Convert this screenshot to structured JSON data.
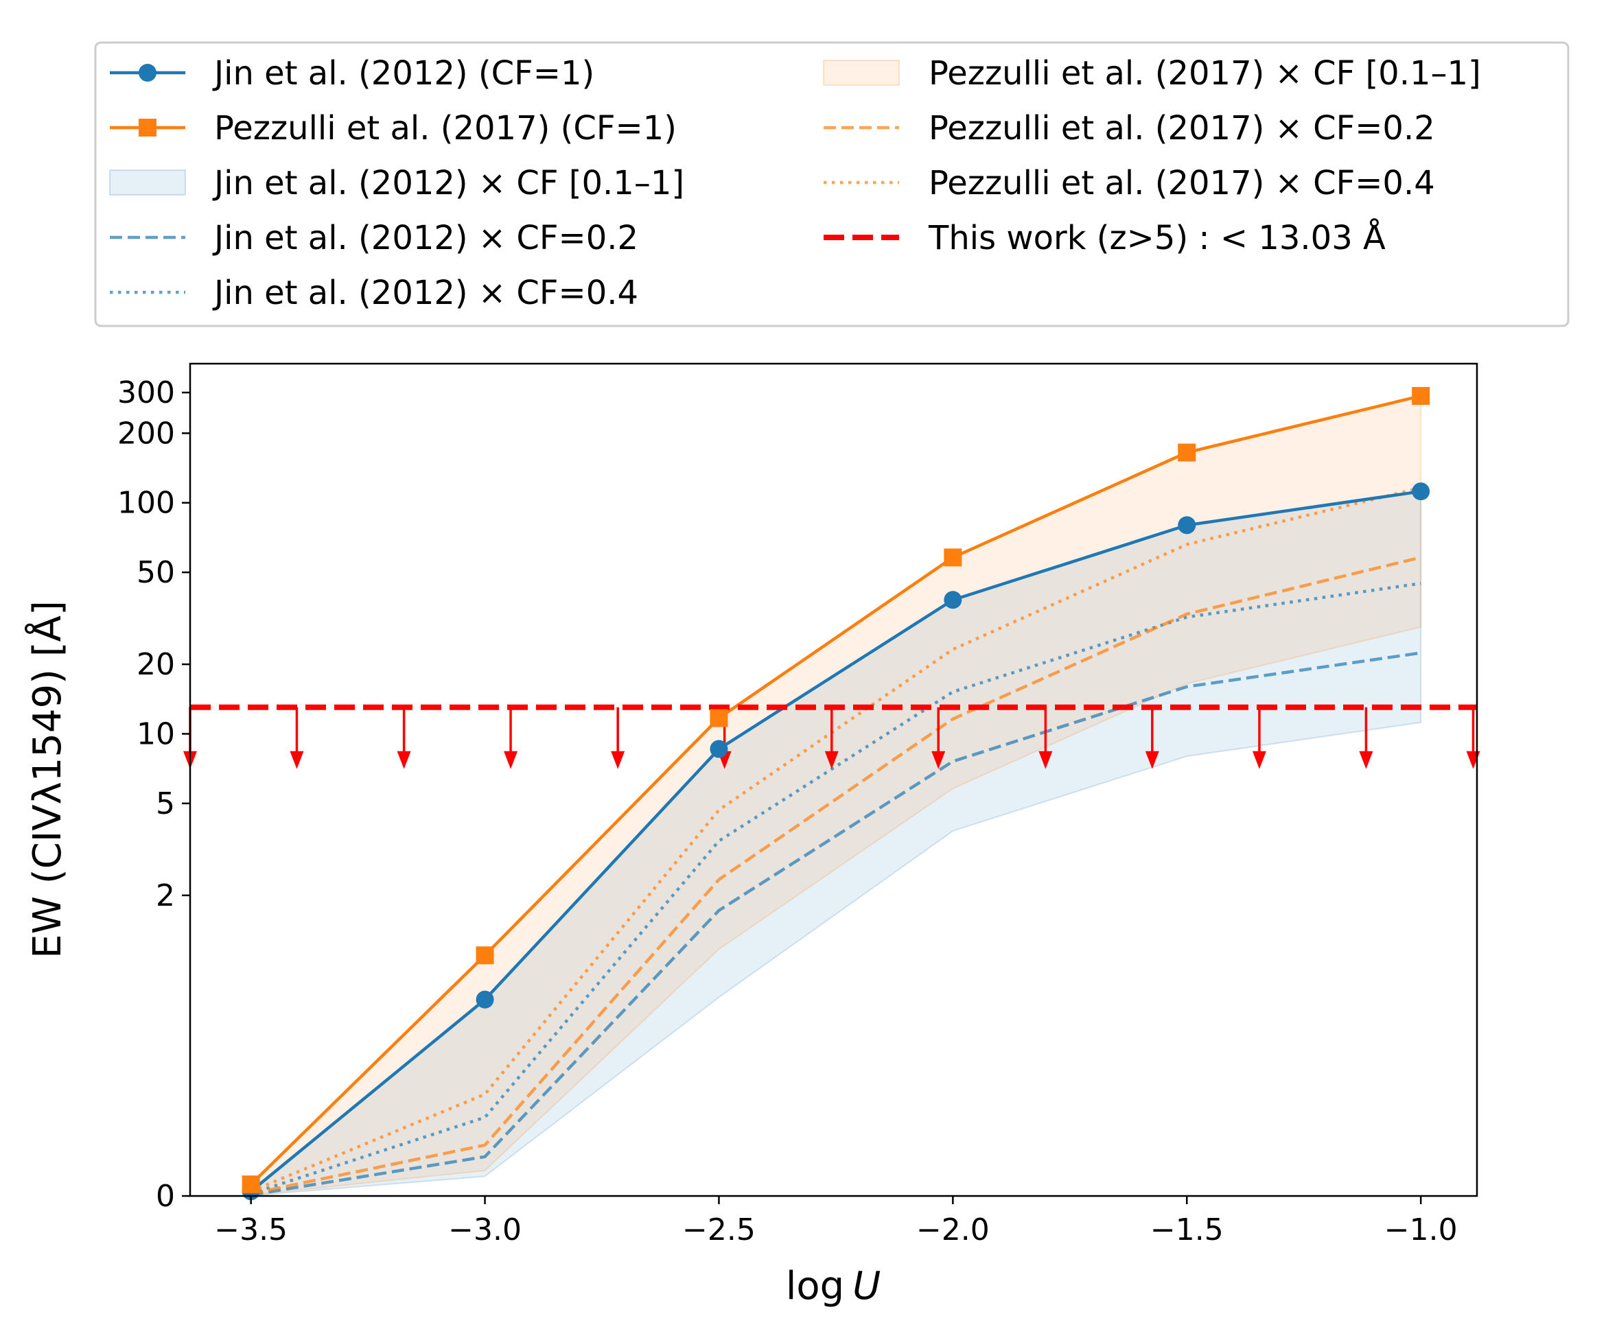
{
  "chart_data": {
    "type": "line",
    "title": "",
    "xlabel": "log U",
    "xlabel_main": "log",
    "xlabel_var": "U",
    "ylabel": "EW (CIVλ1549) [Å]",
    "xlim": [
      -3.63,
      -0.88
    ],
    "ylim": [
      0,
      400
    ],
    "yscale": "symlog",
    "x_ticks": [
      {
        "value": -3.5,
        "label": "−3.5"
      },
      {
        "value": -3.0,
        "label": "−3.0"
      },
      {
        "value": -2.5,
        "label": "−2.5"
      },
      {
        "value": -2.0,
        "label": "−2.0"
      },
      {
        "value": -1.5,
        "label": "−1.5"
      },
      {
        "value": -1.0,
        "label": "−1.0"
      }
    ],
    "y_ticks": [
      {
        "value": 0,
        "label": "0"
      },
      {
        "value": 2,
        "label": "2"
      },
      {
        "value": 5,
        "label": "5"
      },
      {
        "value": 10,
        "label": "10"
      },
      {
        "value": 20,
        "label": "20"
      },
      {
        "value": 50,
        "label": "50"
      },
      {
        "value": 100,
        "label": "100"
      },
      {
        "value": 200,
        "label": "200"
      },
      {
        "value": 300,
        "label": "300"
      }
    ],
    "x": [
      -3.5,
      -3.0,
      -2.5,
      -2.0,
      -1.5,
      -1.0
    ],
    "series": [
      {
        "name": "Jin et al. (2012) (CF=1)",
        "style": "solid",
        "marker": "circle",
        "color": "#1f77b4",
        "values": [
          0.02,
          0.85,
          8.6,
          38,
          80,
          112
        ]
      },
      {
        "name": "Pezzulli et al. (2017) (CF=1)",
        "style": "solid",
        "marker": "square",
        "color": "#ff7f0e",
        "values": [
          0.05,
          1.1,
          11.7,
          58,
          165,
          290
        ]
      },
      {
        "name": "Jin et al. (2012) × CF=0.2",
        "style": "dashed",
        "color": "#1f77b4",
        "values": [
          0.005,
          0.17,
          1.72,
          7.6,
          16,
          22.4
        ]
      },
      {
        "name": "Jin et al. (2012) × CF=0.4",
        "style": "dotted",
        "color": "#1f77b4",
        "values": [
          0.01,
          0.34,
          3.44,
          15.2,
          32,
          44.8
        ]
      },
      {
        "name": "Pezzulli et al. (2017) × CF=0.2",
        "style": "dashed",
        "color": "#ff7f0e",
        "values": [
          0.01,
          0.22,
          2.34,
          11.6,
          33,
          58
        ]
      },
      {
        "name": "Pezzulli et al. (2017) × CF=0.4",
        "style": "dotted",
        "color": "#ff7f0e",
        "values": [
          0.02,
          0.44,
          4.68,
          23.2,
          66,
          116
        ]
      }
    ],
    "bands": [
      {
        "name": "Jin et al. (2012) × CF [0.1–1]",
        "color": "#1f77b4",
        "lower": [
          0.002,
          0.085,
          0.86,
          3.8,
          8,
          11.2
        ],
        "upper": [
          0.02,
          0.85,
          8.6,
          38,
          80,
          112
        ]
      },
      {
        "name": "Pezzulli et al. (2017) × CF [0.1–1]",
        "color": "#ff7f0e",
        "lower": [
          0.005,
          0.11,
          1.17,
          5.8,
          16.5,
          29
        ],
        "upper": [
          0.05,
          1.1,
          11.7,
          58,
          165,
          290
        ]
      }
    ],
    "limit": {
      "name": "This work (z>5) : < 13.03 Å",
      "value": 13.03,
      "color": "#ff0000",
      "arrow_x": [
        -3.63,
        -3.402,
        -3.173,
        -2.945,
        -2.716,
        -2.488,
        -2.259,
        -2.031,
        -1.802,
        -1.574,
        -1.345,
        -1.117,
        -0.888
      ]
    },
    "legend": {
      "placement": "top, outside plot",
      "left_column": [
        {
          "label": "Jin et al. (2012) (CF=1)",
          "kind": "line-marker",
          "color": "#1f77b4",
          "marker": "circle"
        },
        {
          "label": "Pezzulli et al. (2017) (CF=1)",
          "kind": "line-marker",
          "color": "#ff7f0e",
          "marker": "square"
        },
        {
          "label": "Jin et al. (2012) × CF [0.1–1]",
          "kind": "patch",
          "color": "#1f77b4"
        },
        {
          "label": "Jin et al. (2012) × CF=0.2",
          "kind": "dashed",
          "color": "#1f77b4"
        },
        {
          "label": "Jin et al. (2012) × CF=0.4",
          "kind": "dotted",
          "color": "#1f77b4"
        }
      ],
      "right_column": [
        {
          "label": "Pezzulli et al. (2017) × CF [0.1–1]",
          "kind": "patch",
          "color": "#ff7f0e"
        },
        {
          "label": "Pezzulli et al. (2017) × CF=0.2",
          "kind": "dashed",
          "color": "#ff7f0e"
        },
        {
          "label": "Pezzulli et al. (2017) × CF=0.4",
          "kind": "dotted",
          "color": "#ff7f0e"
        },
        {
          "label": "This work (z>5) : < 13.03 Å",
          "kind": "thick-dashed",
          "color": "#ff0000"
        }
      ]
    }
  }
}
